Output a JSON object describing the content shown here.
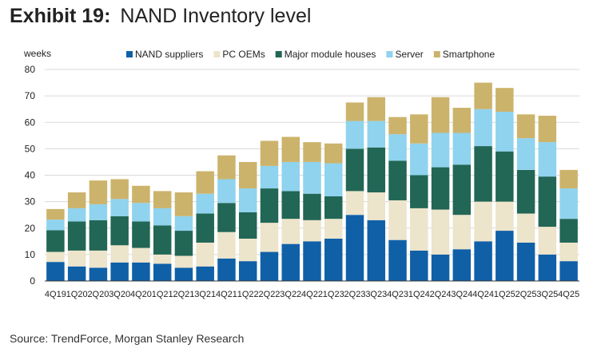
{
  "header": {
    "exhibit": "Exhibit 19:",
    "title": "NAND Inventory level"
  },
  "source": "Source: TrendForce, Morgan Stanley Research",
  "chart_data": {
    "type": "bar",
    "stacked": true,
    "ylabel": "weeks",
    "ylim": [
      0,
      80
    ],
    "yticks": [
      0,
      10,
      20,
      30,
      40,
      50,
      60,
      70,
      80
    ],
    "grid": "horizontal",
    "legend_position": "top",
    "categories": [
      "4Q19",
      "1Q20",
      "2Q20",
      "3Q20",
      "4Q20",
      "1Q21",
      "2Q21",
      "3Q21",
      "4Q21",
      "1Q22",
      "2Q22",
      "3Q22",
      "4Q22",
      "1Q23",
      "2Q23",
      "3Q23",
      "4Q23",
      "1Q24",
      "2Q24",
      "3Q24",
      "4Q24",
      "1Q25",
      "2Q25",
      "3Q25",
      "4Q25"
    ],
    "series": [
      {
        "name": "NAND suppliers",
        "color": "#1060a8",
        "values": [
          7.2,
          5.5,
          5.0,
          7.0,
          7.0,
          6.5,
          5.0,
          5.5,
          8.5,
          7.5,
          11.0,
          14.0,
          15.0,
          16.0,
          25.0,
          23.0,
          15.5,
          11.5,
          10.0,
          12.0,
          15.0,
          19.0,
          14.5,
          10.0,
          7.5
        ]
      },
      {
        "name": "PC OEMs",
        "color": "#ece4cb",
        "values": [
          3.8,
          6.0,
          6.5,
          6.5,
          5.5,
          3.5,
          4.5,
          9.0,
          10.0,
          8.5,
          11.0,
          9.5,
          8.0,
          7.5,
          9.0,
          10.5,
          15.0,
          16.0,
          17.0,
          13.0,
          15.0,
          11.0,
          11.0,
          10.5,
          7.0
        ]
      },
      {
        "name": "Major module houses",
        "color": "#226655",
        "values": [
          8.2,
          11.0,
          11.5,
          11.0,
          10.0,
          11.0,
          9.5,
          11.0,
          11.0,
          10.0,
          13.0,
          10.5,
          10.0,
          8.5,
          16.0,
          17.0,
          15.0,
          12.5,
          16.0,
          19.0,
          21.0,
          19.0,
          16.5,
          19.0,
          9.0
        ]
      },
      {
        "name": "Server",
        "color": "#8fd3ee",
        "values": [
          4.0,
          5.0,
          6.0,
          6.5,
          7.0,
          6.5,
          5.5,
          7.5,
          9.0,
          9.0,
          8.5,
          11.0,
          12.0,
          12.5,
          10.5,
          10.0,
          10.0,
          12.0,
          13.0,
          12.0,
          14.0,
          15.0,
          12.0,
          13.0,
          11.5
        ]
      },
      {
        "name": "Smartphone",
        "color": "#ccb36b",
        "values": [
          4.0,
          6.0,
          9.0,
          7.5,
          6.5,
          6.5,
          9.0,
          8.5,
          9.0,
          10.0,
          9.5,
          9.5,
          7.5,
          7.5,
          7.0,
          9.0,
          6.5,
          11.0,
          13.5,
          9.5,
          10.0,
          9.0,
          9.0,
          10.0,
          7.0
        ]
      }
    ]
  }
}
